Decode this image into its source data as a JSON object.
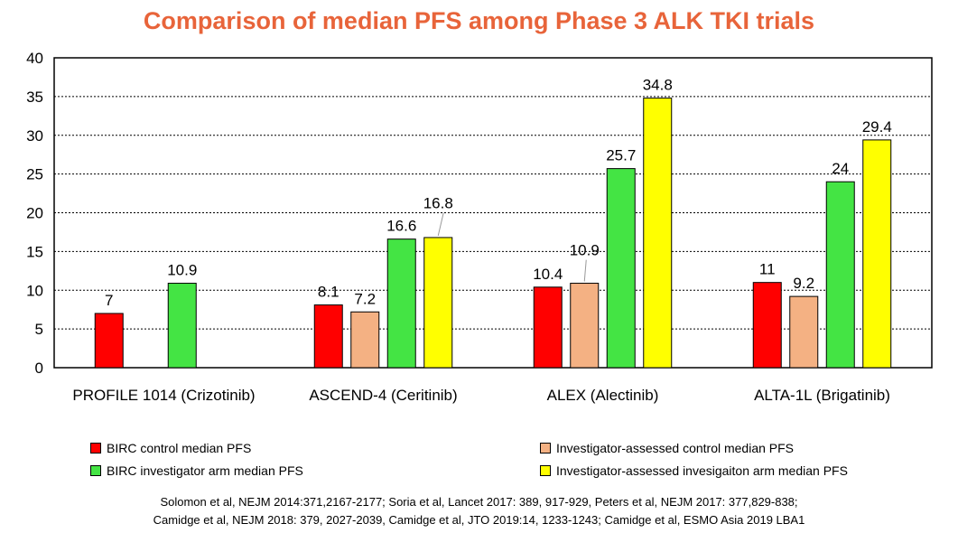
{
  "colors": {
    "title": "#e8643a",
    "birc_control": "#ff0000",
    "inv_control": "#f4b183",
    "birc_investigator": "#44e444",
    "inv_investigator": "#ffff00"
  },
  "chart_data": {
    "type": "bar",
    "title": "Comparison of median PFS among Phase 3 ALK TKI trials",
    "xlabel": "",
    "ylabel": "",
    "ylim": [
      0,
      40
    ],
    "yticks": [
      0,
      5,
      10,
      15,
      20,
      25,
      30,
      35,
      40
    ],
    "grid": true,
    "legend_position": "bottom",
    "categories": [
      "PROFILE 1014 (Crizotinib)",
      "ASCEND-4 (Ceritinib)",
      "ALEX (Alectinib)",
      "ALTA-1L (Brigatinib)"
    ],
    "series": [
      {
        "name": "BIRC control median PFS",
        "color": "#ff0000",
        "values": [
          7,
          8.1,
          10.4,
          11
        ],
        "labels": [
          "7",
          "8.1",
          "10.4",
          "11"
        ]
      },
      {
        "name": "Investigator-assessed control median PFS",
        "color": "#f4b183",
        "values": [
          null,
          7.2,
          10.9,
          9.2
        ],
        "labels": [
          "",
          "7.2",
          "10.9",
          "9.2"
        ]
      },
      {
        "name": "BIRC investigator arm median PFS",
        "color": "#44e444",
        "values": [
          10.9,
          16.6,
          25.7,
          24
        ],
        "labels": [
          "10.9",
          "16.6",
          "25.7",
          "24"
        ]
      },
      {
        "name": "Investigator-assessed invesigaiton arm median PFS",
        "color": "#ffff00",
        "values": [
          null,
          16.8,
          34.8,
          29.4
        ],
        "labels": [
          "",
          "16.8",
          "34.8",
          "29.4"
        ]
      }
    ]
  },
  "citation": {
    "line1": "Solomon et al, NEJM 2014:371,2167-2177; Soria et al, Lancet 2017: 389, 917-929, Peters et al, NEJM 2017: 377,829-838;",
    "line2": "Camidge et al, NEJM 2018: 379, 2027-2039, Camidge et al, JTO 2019:14, 1233-1243; Camidge et al, ESMO Asia 2019 LBA1"
  }
}
